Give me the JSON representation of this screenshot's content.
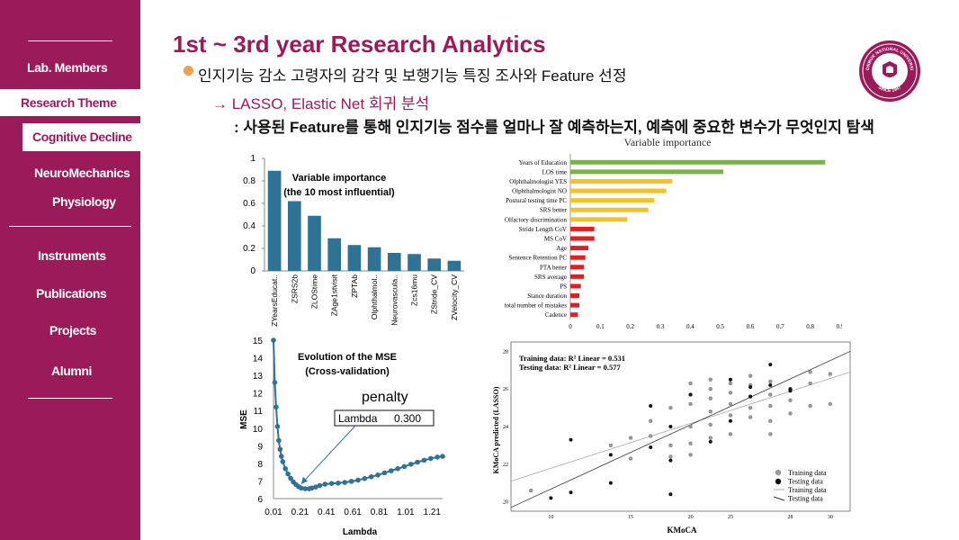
{
  "nav": {
    "lab_members": "Lab. Members",
    "research_theme": "Research Theme",
    "cognitive_decline": "Cognitive Decline",
    "neuromechanics": "NeuroMechanics",
    "physiology": "Physiology",
    "instruments": "Instruments",
    "publications": "Publications",
    "projects": "Projects",
    "alumni": "Alumni"
  },
  "header": {
    "title": "1st ~ 3rd year Research Analytics",
    "bullet_text": "인지기능 감소 고령자의 감각 및 보행기능 특징 조사와 Feature 선정",
    "method_text": "→ LASSO, Elastic Net 회귀 분석",
    "desc_text": ": 사용된 Feature를 통해 인지기능 점수를 얼마나 잘 예측하는지, 예측에 중요한 변수가 무엇인지 탐색"
  },
  "logo": {
    "top_text": "JEONBUK NATIONAL UNIVERSITY",
    "bottom_text": "SINCE 1947"
  },
  "chart_data": [
    {
      "type": "bar",
      "title": "Variable importance",
      "subtitle": "(the 10 most influential)",
      "categories": [
        "ZYearsEducat..",
        "ZSRS2b",
        "ZLOStime",
        "ZAge1stvisit",
        "ZPTAb",
        "Olphthalmol..",
        "Neurovascula..",
        "Zcs16mu",
        "ZStride_CV",
        "ZVelocity_CV"
      ],
      "values": [
        0.89,
        0.62,
        0.49,
        0.29,
        0.23,
        0.21,
        0.16,
        0.15,
        0.11,
        0.09
      ],
      "ylim": [
        0,
        1
      ],
      "yticks": [
        "0",
        "0.2",
        "0.4",
        "0.6",
        "0.8",
        "1"
      ],
      "color": "#2e7396"
    },
    {
      "type": "bar",
      "orientation": "horizontal",
      "title": "Variable importance",
      "categories": [
        "Years of Education",
        "LOS time",
        "Olphthalmologist YES",
        "Olphthalmologist NO",
        "Postural testing time PC",
        "SRS better",
        "Olfactory discrimination",
        "Stride Length CoV",
        "MS CoV",
        "Age",
        "Sentence Retention PC",
        "PTA better",
        "SRS average",
        "PS",
        "Stance duration",
        "total number of mistakes",
        "Cadence"
      ],
      "values": [
        0.85,
        0.51,
        0.34,
        0.32,
        0.28,
        0.26,
        0.19,
        0.08,
        0.08,
        0.06,
        0.05,
        0.045,
        0.045,
        0.035,
        0.03,
        0.03,
        0.025
      ],
      "colors": [
        "#7bb04a",
        "#7bb04a",
        "#f2c22a",
        "#f2c22a",
        "#f2c22a",
        "#f2c22a",
        "#f2c22a",
        "#e02020",
        "#e02020",
        "#e02020",
        "#e02020",
        "#e02020",
        "#e02020",
        "#e02020",
        "#e02020",
        "#e02020",
        "#e02020"
      ],
      "xlim": [
        0,
        0.9
      ],
      "xticks": [
        "0",
        "0.1",
        "0.2",
        "0.3",
        "0.4",
        "0.5",
        "0.6",
        "0.7",
        "0.8",
        "0.9"
      ]
    },
    {
      "type": "line",
      "title": "Evolution of the MSE",
      "subtitle": "(Cross-validation)",
      "xlabel": "Lambda",
      "ylabel": "MSE",
      "xticks": [
        "0.01",
        "0.21",
        "0.41",
        "0.61",
        "0.81",
        "1.01",
        "1.21"
      ],
      "yticks": [
        "6",
        "7",
        "8",
        "9",
        "10",
        "11",
        "12",
        "13",
        "14",
        "15"
      ],
      "xlim": [
        0.01,
        1.29
      ],
      "ylim": [
        6,
        15
      ],
      "x": [
        0.01,
        0.02,
        0.03,
        0.04,
        0.05,
        0.06,
        0.07,
        0.08,
        0.1,
        0.12,
        0.14,
        0.16,
        0.18,
        0.2,
        0.22,
        0.25,
        0.28,
        0.3,
        0.33,
        0.36,
        0.4,
        0.45,
        0.5,
        0.55,
        0.6,
        0.65,
        0.7,
        0.75,
        0.8,
        0.85,
        0.9,
        0.95,
        1.0,
        1.05,
        1.1,
        1.15,
        1.2,
        1.25,
        1.29
      ],
      "y": [
        15.0,
        12.6,
        11.2,
        10.1,
        9.3,
        8.8,
        8.4,
        8.1,
        7.7,
        7.4,
        7.15,
        6.95,
        6.8,
        6.68,
        6.6,
        6.56,
        6.56,
        6.6,
        6.66,
        6.74,
        6.82,
        6.86,
        6.88,
        6.92,
        6.98,
        7.05,
        7.14,
        7.24,
        7.34,
        7.46,
        7.58,
        7.7,
        7.82,
        7.95,
        8.07,
        8.18,
        8.28,
        8.36,
        8.4
      ],
      "annotation_title": "penalty",
      "annotation_label": "Lambda",
      "annotation_value": "0.300",
      "color": "#2e7396"
    },
    {
      "type": "scatter",
      "xlabel": "KMoCA",
      "ylabel": "KMoCA predicted (LASSO)",
      "xlim": [
        14,
        31
      ],
      "ylim": [
        19.5,
        28.5
      ],
      "xticks": [
        "10",
        "15",
        "20",
        "25",
        "28",
        "30"
      ],
      "yticks": [
        "20",
        "22",
        "24",
        "26",
        "28"
      ],
      "annotation_train": "Training data: R² Linear = 0.531",
      "annotation_test": "Testing data: R² Linear = 0.577",
      "legend": [
        "Training data",
        "Testing data",
        "Training data",
        "Testing data"
      ],
      "training": [
        [
          15,
          20.6
        ],
        [
          19,
          23.0
        ],
        [
          20,
          22.3
        ],
        [
          20,
          23.4
        ],
        [
          21,
          23.5
        ],
        [
          21,
          24.3
        ],
        [
          22,
          22.4
        ],
        [
          22,
          23.0
        ],
        [
          22,
          25.0
        ],
        [
          23,
          22.5
        ],
        [
          23,
          23.1
        ],
        [
          23,
          24.0
        ],
        [
          23,
          25.2
        ],
        [
          23,
          25.7
        ],
        [
          23,
          26.3
        ],
        [
          24,
          23.4
        ],
        [
          24,
          24.1
        ],
        [
          24,
          24.8
        ],
        [
          24,
          25.5
        ],
        [
          24,
          26.0
        ],
        [
          24,
          26.5
        ],
        [
          25,
          23.6
        ],
        [
          25,
          24.6
        ],
        [
          25,
          25.2
        ],
        [
          25,
          25.8
        ],
        [
          25,
          26.3
        ],
        [
          26,
          24.5
        ],
        [
          26,
          25.0
        ],
        [
          26,
          25.6
        ],
        [
          26,
          26.2
        ],
        [
          26,
          26.7
        ],
        [
          27,
          23.6
        ],
        [
          27,
          24.3
        ],
        [
          27,
          25.1
        ],
        [
          27,
          25.7
        ],
        [
          27,
          26.4
        ],
        [
          28,
          24.7
        ],
        [
          28,
          25.4
        ],
        [
          28,
          26.0
        ],
        [
          29,
          25.1
        ],
        [
          29,
          26.3
        ],
        [
          29,
          26.9
        ],
        [
          30,
          25.2
        ],
        [
          30,
          26.8
        ]
      ],
      "testing": [
        [
          16,
          20.2
        ],
        [
          17,
          20.5
        ],
        [
          17,
          23.3
        ],
        [
          19,
          21.0
        ],
        [
          19,
          22.5
        ],
        [
          21,
          22.9
        ],
        [
          21,
          25.1
        ],
        [
          22,
          20.4
        ],
        [
          22,
          22.2
        ],
        [
          22,
          24.0
        ],
        [
          23,
          25.7
        ],
        [
          24,
          23.2
        ],
        [
          25,
          24.3
        ],
        [
          25,
          26.5
        ],
        [
          26,
          25.6
        ],
        [
          26,
          26.1
        ],
        [
          27,
          26.2
        ],
        [
          27,
          27.3
        ],
        [
          28,
          25.9
        ],
        [
          28,
          26.0
        ]
      ]
    }
  ]
}
